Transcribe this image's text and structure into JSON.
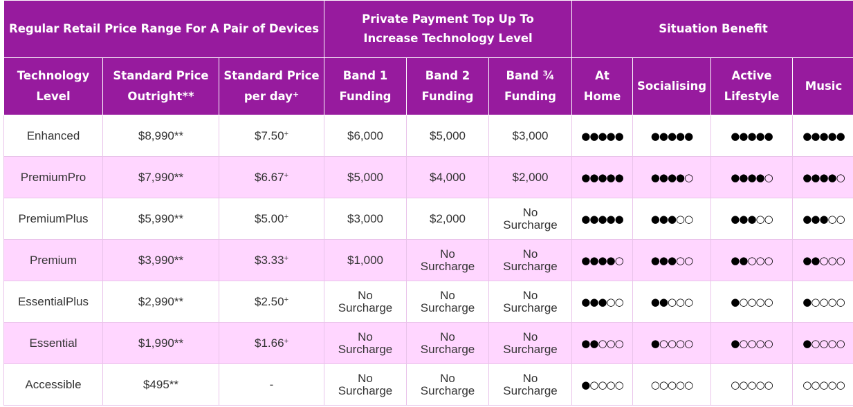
{
  "group_headers": {
    "retail": "Regular Retail Price Range For A Pair of Devices",
    "topup": "Private Payment Top Up To Increase Technology Level",
    "situation": "Situation Benefit"
  },
  "columns": {
    "tech_level": [
      "Technology",
      "Level"
    ],
    "outright": [
      "Standard Price",
      "Outright**"
    ],
    "per_day": [
      "Standard Price",
      "per day",
      "+"
    ],
    "band1": [
      "Band 1",
      "Funding"
    ],
    "band2": [
      "Band 2",
      "Funding"
    ],
    "band34": [
      "Band ¾",
      "Funding"
    ],
    "at_home": [
      "At",
      "Home"
    ],
    "socialising": "Socialising",
    "active": [
      "Active",
      "Lifestyle"
    ],
    "music": "Music"
  },
  "rows": [
    {
      "level": "Enhanced",
      "outright": "$8,990**",
      "per_day": "$7.50",
      "per_day_sup": "+",
      "band1": [
        "$6,000"
      ],
      "band2": [
        "$5,000"
      ],
      "band34": [
        "$3,000"
      ],
      "at_home": "●●●●●",
      "socialising": "●●●●●",
      "active": "●●●●●",
      "music": "●●●●●"
    },
    {
      "level": "PremiumPro",
      "outright": "$7,990**",
      "per_day": "$6.67",
      "per_day_sup": "+",
      "band1": [
        "$5,000"
      ],
      "band2": [
        "$4,000"
      ],
      "band34": [
        "$2,000"
      ],
      "at_home": "●●●●●",
      "socialising": "●●●●○",
      "active": "●●●●○",
      "music": "●●●●○"
    },
    {
      "level": "PremiumPlus",
      "outright": "$5,990**",
      "per_day": "$5.00",
      "per_day_sup": "+",
      "band1": [
        "$3,000"
      ],
      "band2": [
        "$2,000"
      ],
      "band34": [
        "No",
        "Surcharge"
      ],
      "at_home": "●●●●●",
      "socialising": "●●●○○",
      "active": "●●●○○",
      "music": "●●●○○"
    },
    {
      "level": "Premium",
      "outright": "$3,990**",
      "per_day": "$3.33",
      "per_day_sup": "+",
      "band1": [
        "$1,000"
      ],
      "band2": [
        "No",
        "Surcharge"
      ],
      "band34": [
        "No",
        "Surcharge"
      ],
      "at_home": "●●●●○",
      "socialising": "●●●○○",
      "active": "●●○○○",
      "music": "●●○○○"
    },
    {
      "level": "EssentialPlus",
      "outright": "$2,990**",
      "per_day": "$2.50",
      "per_day_sup": "+",
      "band1": [
        "No",
        "Surcharge"
      ],
      "band2": [
        "No",
        "Surcharge"
      ],
      "band34": [
        "No",
        "Surcharge"
      ],
      "at_home": "●●●○○",
      "socialising": "●●○○○",
      "active": "●○○○○",
      "music": "●○○○○"
    },
    {
      "level": "Essential",
      "outright": "$1,990**",
      "per_day": "$1.66",
      "per_day_sup": "+",
      "band1": [
        "No",
        "Surcharge"
      ],
      "band2": [
        "No",
        "Surcharge"
      ],
      "band34": [
        "No",
        "Surcharge"
      ],
      "at_home": "●●○○○",
      "socialising": "●○○○○",
      "active": "●○○○○",
      "music": "●○○○○"
    },
    {
      "level": "Accessible",
      "outright": "$495**",
      "per_day": "-",
      "per_day_sup": "",
      "band1": [
        "No",
        "Surcharge"
      ],
      "band2": [
        "No",
        "Surcharge"
      ],
      "band34": [
        "No",
        "Surcharge"
      ],
      "at_home": "●○○○○",
      "socialising": "○○○○○",
      "active": "○○○○○",
      "music": "○○○○○"
    }
  ]
}
